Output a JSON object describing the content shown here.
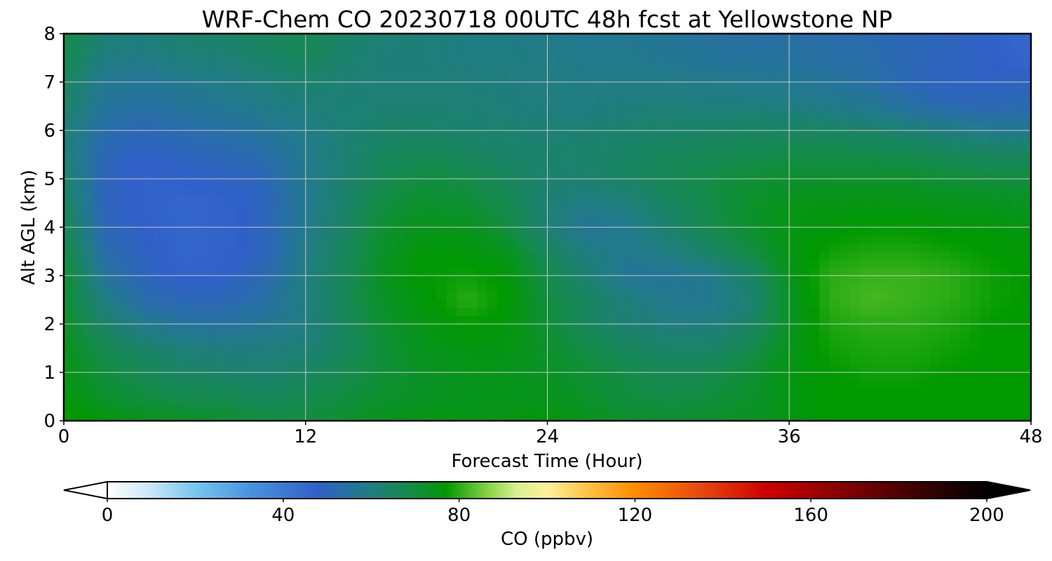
{
  "chart_data": {
    "type": "heatmap",
    "title": "WRF-Chem CO  20230718 00UTC 48h fcst at Yellowstone NP",
    "xlabel": "Forecast Time (Hour)",
    "ylabel": "Alt AGL (km)",
    "xlim": [
      0,
      48
    ],
    "ylim": [
      0,
      8
    ],
    "x_ticks": [
      "0",
      "12",
      "24",
      "36",
      "48"
    ],
    "y_ticks": [
      "0",
      "1",
      "2",
      "3",
      "4",
      "5",
      "6",
      "7",
      "8"
    ],
    "grid": true,
    "x": [
      0,
      2,
      4,
      6,
      8,
      10,
      12,
      14,
      16,
      18,
      20,
      22,
      24,
      26,
      28,
      30,
      32,
      34,
      36,
      38,
      40,
      42,
      44,
      46,
      48
    ],
    "y": [
      0,
      0.5,
      1,
      1.5,
      2,
      2.5,
      3,
      3.5,
      4,
      4.5,
      5,
      5.5,
      6,
      6.5,
      7,
      7.5,
      8
    ],
    "z": [
      [
        78,
        76,
        74,
        73,
        72,
        70,
        70,
        72,
        74,
        75,
        75,
        75,
        76,
        74,
        72,
        72,
        72,
        73,
        75,
        77,
        77,
        77,
        77,
        77,
        77
      ],
      [
        76,
        72,
        70,
        68,
        68,
        66,
        68,
        70,
        72,
        73,
        74,
        74,
        74,
        72,
        70,
        69,
        70,
        72,
        75,
        77,
        77,
        77,
        77,
        77,
        77
      ],
      [
        75,
        70,
        67,
        65,
        64,
        63,
        65,
        68,
        71,
        73,
        74,
        74,
        73,
        71,
        69,
        67,
        68,
        71,
        75,
        77,
        78,
        78,
        77,
        77,
        77
      ],
      [
        74,
        68,
        64,
        61,
        60,
        60,
        62,
        66,
        71,
        74,
        75,
        75,
        72,
        69,
        66,
        64,
        64,
        68,
        74,
        78,
        79,
        79,
        78,
        77,
        77
      ],
      [
        73,
        64,
        58,
        55,
        55,
        57,
        60,
        66,
        72,
        75,
        77,
        76,
        71,
        66,
        62,
        60,
        60,
        64,
        73,
        79,
        80,
        80,
        79,
        77,
        77
      ],
      [
        72,
        60,
        53,
        51,
        51,
        54,
        60,
        67,
        73,
        76,
        80,
        77,
        70,
        65,
        61,
        58,
        57,
        62,
        73,
        80,
        82,
        81,
        80,
        78,
        77
      ],
      [
        72,
        56,
        50,
        47,
        48,
        52,
        60,
        67,
        74,
        77,
        78,
        76,
        69,
        62,
        56,
        56,
        58,
        64,
        74,
        80,
        81,
        81,
        80,
        78,
        77
      ],
      [
        70,
        53,
        49,
        46,
        47,
        50,
        59,
        66,
        73,
        76,
        76,
        74,
        66,
        60,
        58,
        60,
        64,
        69,
        75,
        78,
        79,
        79,
        78,
        77,
        76
      ],
      [
        68,
        51,
        48,
        46,
        47,
        50,
        58,
        65,
        72,
        74,
        74,
        70,
        62,
        56,
        58,
        63,
        68,
        72,
        75,
        76,
        77,
        77,
        76,
        76,
        75
      ],
      [
        66,
        50,
        47,
        46,
        47,
        50,
        57,
        64,
        70,
        72,
        71,
        68,
        62,
        59,
        61,
        65,
        69,
        72,
        74,
        75,
        75,
        75,
        74,
        74,
        73
      ],
      [
        64,
        50,
        47,
        48,
        49,
        51,
        58,
        63,
        68,
        70,
        69,
        66,
        63,
        63,
        65,
        67,
        69,
        71,
        72,
        72,
        72,
        72,
        71,
        70,
        70
      ],
      [
        62,
        51,
        48,
        50,
        51,
        53,
        58,
        62,
        66,
        67,
        66,
        64,
        63,
        64,
        65,
        66,
        67,
        68,
        69,
        69,
        69,
        68,
        67,
        66,
        66
      ],
      [
        62,
        53,
        51,
        53,
        54,
        56,
        59,
        62,
        64,
        64,
        63,
        63,
        62,
        62,
        63,
        64,
        64,
        65,
        65,
        65,
        64,
        62,
        60,
        58,
        58
      ],
      [
        64,
        56,
        54,
        56,
        57,
        59,
        61,
        62,
        62,
        62,
        62,
        61,
        60,
        60,
        61,
        61,
        61,
        61,
        60,
        59,
        57,
        54,
        52,
        51,
        52
      ],
      [
        66,
        57,
        56,
        58,
        59,
        61,
        63,
        62,
        61,
        61,
        61,
        60,
        60,
        59,
        59,
        59,
        58,
        58,
        57,
        56,
        54,
        51,
        49,
        49,
        50
      ],
      [
        68,
        60,
        59,
        61,
        62,
        64,
        66,
        63,
        61,
        61,
        60,
        60,
        59,
        58,
        58,
        57,
        56,
        55,
        55,
        54,
        53,
        51,
        50,
        48,
        46
      ],
      [
        70,
        62,
        61,
        63,
        64,
        66,
        68,
        64,
        62,
        61,
        60,
        59,
        58,
        57,
        57,
        56,
        55,
        54,
        54,
        53,
        52,
        51,
        50,
        48,
        45
      ]
    ],
    "colorbar": {
      "label": "CO  (ppbv)",
      "ticks": [
        0,
        40,
        80,
        120,
        160,
        200
      ],
      "min": 0,
      "max": 200,
      "extend": "both",
      "stops": [
        {
          "v": 0,
          "c": "#ffffff"
        },
        {
          "v": 10,
          "c": "#c8e6f8"
        },
        {
          "v": 20,
          "c": "#78c6f0"
        },
        {
          "v": 32,
          "c": "#4a94e0"
        },
        {
          "v": 48,
          "c": "#3060c8"
        },
        {
          "v": 58,
          "c": "#227a8c"
        },
        {
          "v": 68,
          "c": "#168a50"
        },
        {
          "v": 77,
          "c": "#009900"
        },
        {
          "v": 86,
          "c": "#7fd040"
        },
        {
          "v": 93,
          "c": "#d8f090"
        },
        {
          "v": 100,
          "c": "#fff09a"
        },
        {
          "v": 110,
          "c": "#ffc040"
        },
        {
          "v": 120,
          "c": "#ff8c00"
        },
        {
          "v": 135,
          "c": "#e84810"
        },
        {
          "v": 150,
          "c": "#cc0000"
        },
        {
          "v": 170,
          "c": "#7a0000"
        },
        {
          "v": 185,
          "c": "#3a0000"
        },
        {
          "v": 200,
          "c": "#000000"
        }
      ]
    }
  }
}
